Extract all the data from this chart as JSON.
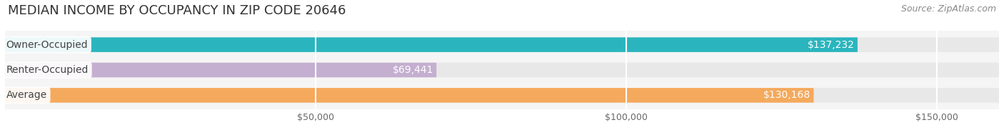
{
  "title": "MEDIAN INCOME BY OCCUPANCY IN ZIP CODE 20646",
  "source": "Source: ZipAtlas.com",
  "categories": [
    "Owner-Occupied",
    "Renter-Occupied",
    "Average"
  ],
  "values": [
    137232,
    69441,
    130168
  ],
  "labels": [
    "$137,232",
    "$69,441",
    "$130,168"
  ],
  "bar_colors": [
    "#2ab5be",
    "#c4afd0",
    "#f5a95c"
  ],
  "bar_bg_color": "#e8e8e8",
  "bar_border_color": "#d0d0d0",
  "xlim_max": 160000,
  "xticks": [
    50000,
    100000,
    150000
  ],
  "xtick_labels": [
    "$50,000",
    "$100,000",
    "$150,000"
  ],
  "title_fontsize": 13,
  "source_fontsize": 9,
  "cat_label_fontsize": 10,
  "val_label_fontsize": 10,
  "figsize": [
    14.06,
    1.96
  ],
  "dpi": 100,
  "fig_bg": "#ffffff",
  "ax_bg": "#f5f5f5"
}
